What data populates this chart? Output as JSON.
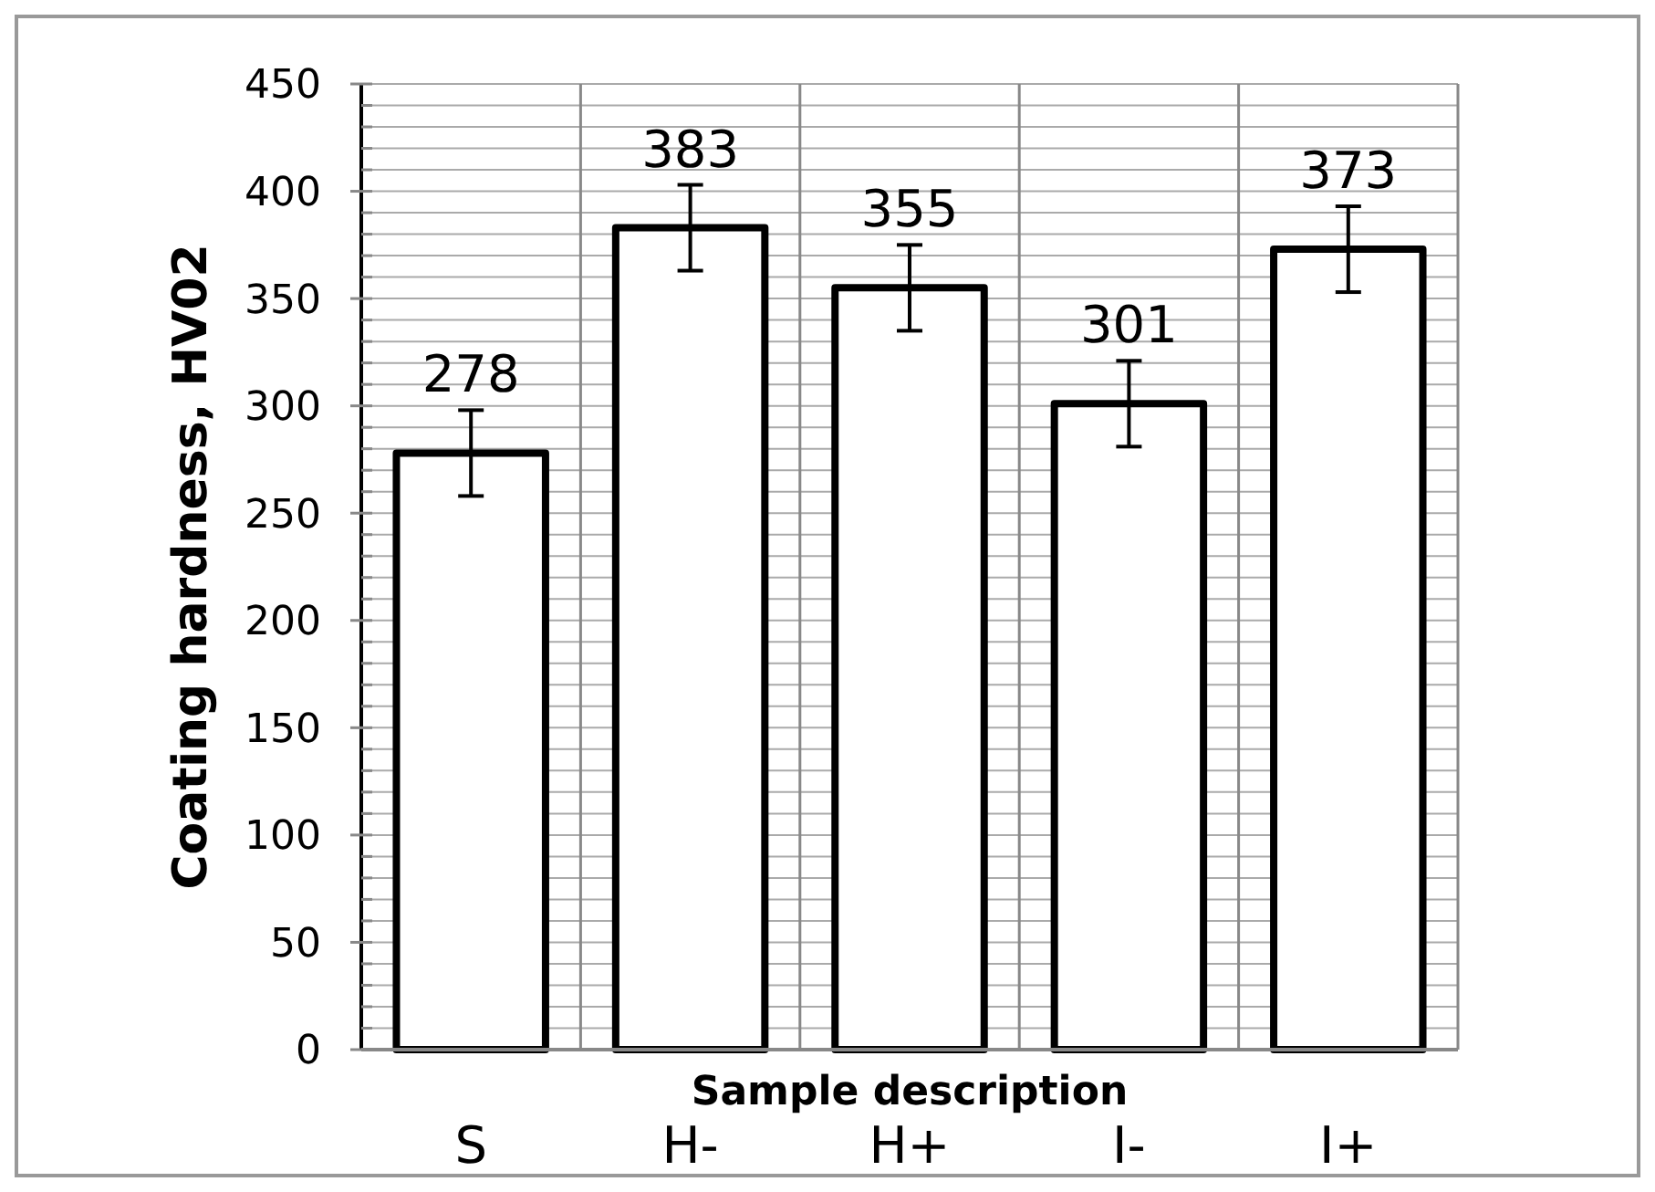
{
  "chart_data": {
    "type": "bar",
    "xlabel": "Sample description",
    "ylabel": "Coating hardness, HV02",
    "categories": [
      "S",
      "H-",
      "H+",
      "I-",
      "I+"
    ],
    "values": [
      278,
      383,
      355,
      301,
      373
    ],
    "errors": [
      20,
      20,
      20,
      20,
      20
    ],
    "color": "#ffffff",
    "data_labels": true,
    "ylim": [
      0,
      450
    ],
    "yticks": [
      0,
      {
        "value": 10,
        "label": null
      },
      {
        "value": 20,
        "label": null
      },
      {
        "value": 30,
        "label": null
      },
      {
        "value": 40,
        "label": null
      },
      50,
      {
        "value": 60,
        "label": null
      },
      {
        "value": 70,
        "label": null
      },
      {
        "value": 80,
        "label": null
      },
      {
        "value": 90,
        "label": null
      },
      100,
      {
        "value": 110,
        "label": null
      },
      {
        "value": 120,
        "label": null
      },
      {
        "value": 130,
        "label": null
      },
      {
        "value": 140,
        "label": null
      },
      150,
      {
        "value": 160,
        "label": null
      },
      {
        "value": 170,
        "label": null
      },
      {
        "value": 180,
        "label": null
      },
      {
        "value": 190,
        "label": null
      },
      200,
      {
        "value": 210,
        "label": null
      },
      {
        "value": 220,
        "label": null
      },
      {
        "value": 230,
        "label": null
      },
      {
        "value": 240,
        "label": null
      },
      250,
      {
        "value": 260,
        "label": null
      },
      {
        "value": 270,
        "label": null
      },
      {
        "value": 280,
        "label": null
      },
      {
        "value": 290,
        "label": null
      },
      300,
      {
        "value": 310,
        "label": null
      },
      {
        "value": 320,
        "label": null
      },
      {
        "value": 330,
        "label": null
      },
      {
        "value": 340,
        "label": null
      },
      350,
      {
        "value": 360,
        "label": null
      },
      {
        "value": 370,
        "label": null
      },
      {
        "value": 380,
        "label": null
      },
      {
        "value": 390,
        "label": null
      },
      400,
      {
        "value": 410,
        "label": null
      },
      {
        "value": 420,
        "label": null
      },
      {
        "value": 430,
        "label": null
      },
      {
        "value": 440,
        "label": null
      },
      450
    ],
    "grid": true
  }
}
